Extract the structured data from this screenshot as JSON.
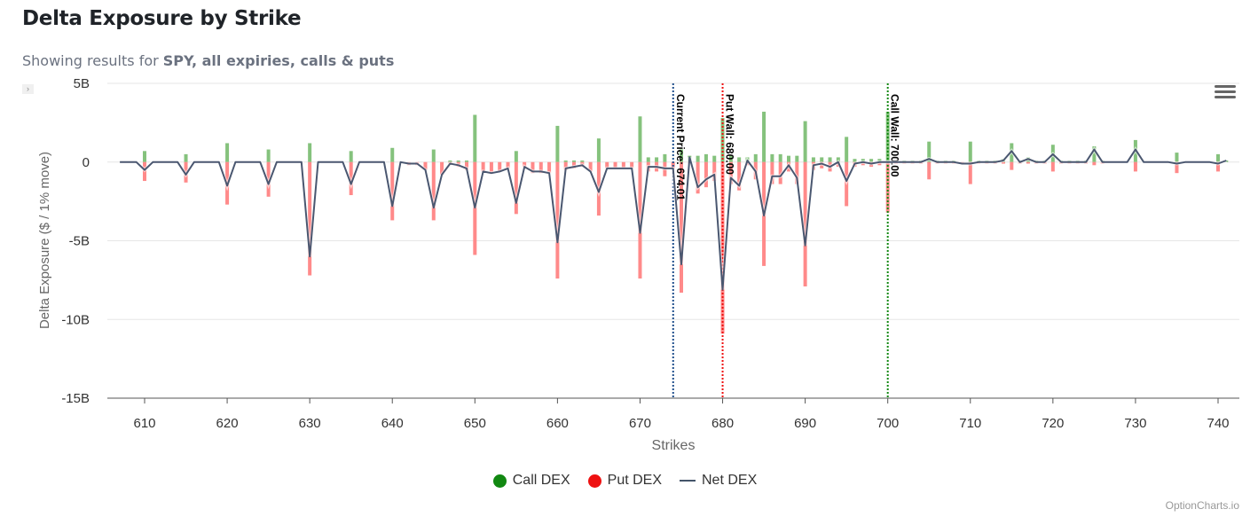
{
  "header": {
    "title": "Delta Exposure by Strike",
    "subtitle_prefix": "Showing results for ",
    "subtitle_bold": "SPY, all expiries, calls & puts"
  },
  "expander_label": "›",
  "legend": [
    {
      "name": "Call DEX",
      "color": "#118811"
    },
    {
      "name": "Put DEX",
      "color": "#ee1111"
    },
    {
      "name": "Net DEX",
      "color": "#44546a"
    }
  ],
  "credit": "OptionCharts.io",
  "chart_data": {
    "type": "bar",
    "title": "Delta Exposure by Strike",
    "xlabel": "Strikes",
    "ylabel": "Delta Exposure ($ / 1% move)",
    "ylim": [
      -15,
      5
    ],
    "yunit": "B",
    "yticks": [
      "5B",
      "0",
      "-5B",
      "-10B",
      "-15B"
    ],
    "xticks": [
      610,
      620,
      630,
      640,
      650,
      660,
      670,
      680,
      690,
      700,
      710,
      720,
      730,
      740
    ],
    "xlim": [
      606.5,
      742
    ],
    "grid": true,
    "legend_position": "bottom",
    "annotations": [
      {
        "label": "Current Price: 674.01",
        "x": 674.01,
        "color": "#1f4e8c"
      },
      {
        "label": "Put Wall: 680.00",
        "x": 680,
        "color": "#ee1111"
      },
      {
        "label": "Call Wall: 700.00",
        "x": 700,
        "color": "#118811"
      }
    ],
    "strikes": [
      607,
      608,
      609,
      610,
      611,
      612,
      613,
      614,
      615,
      616,
      617,
      618,
      619,
      620,
      621,
      622,
      623,
      624,
      625,
      626,
      627,
      628,
      629,
      630,
      631,
      632,
      633,
      634,
      635,
      636,
      637,
      638,
      639,
      640,
      641,
      642,
      643,
      644,
      645,
      646,
      647,
      648,
      649,
      650,
      651,
      652,
      653,
      654,
      655,
      656,
      657,
      658,
      659,
      660,
      661,
      662,
      663,
      664,
      665,
      666,
      667,
      668,
      669,
      670,
      671,
      672,
      673,
      674,
      675,
      676,
      677,
      678,
      679,
      680,
      681,
      682,
      683,
      684,
      685,
      686,
      687,
      688,
      689,
      690,
      691,
      692,
      693,
      694,
      695,
      696,
      697,
      698,
      699,
      700,
      701,
      702,
      703,
      704,
      705,
      706,
      707,
      708,
      709,
      710,
      711,
      712,
      713,
      714,
      715,
      716,
      717,
      718,
      719,
      720,
      721,
      722,
      723,
      724,
      725,
      726,
      727,
      728,
      729,
      730,
      731,
      732,
      733,
      734,
      735,
      736,
      737,
      738,
      739,
      740,
      741
    ],
    "series": [
      {
        "name": "Call DEX",
        "values": [
          0,
          0,
          0,
          0.7,
          0,
          0,
          0,
          0,
          0.5,
          0,
          0,
          0,
          0,
          1.2,
          0,
          0,
          0,
          0,
          0.8,
          0,
          0,
          0,
          0,
          1.2,
          0,
          0,
          0,
          0,
          0.7,
          0,
          0,
          0,
          0,
          0.9,
          0,
          0,
          0,
          0,
          0.8,
          0,
          0.1,
          0.1,
          0.1,
          3.0,
          0,
          0,
          0,
          0,
          0.7,
          0,
          0,
          0,
          0,
          2.3,
          0.1,
          0.1,
          0.1,
          0,
          1.5,
          0,
          0,
          0,
          0,
          2.9,
          0.3,
          0.3,
          0.5,
          0,
          0.8,
          0.4,
          0.4,
          0.5,
          0.4,
          2.8,
          0.4,
          0.3,
          0.3,
          0.5,
          3.2,
          0.5,
          0.5,
          0.4,
          0.4,
          2.6,
          0.3,
          0.3,
          0.3,
          0.3,
          1.6,
          0.2,
          0.2,
          0.2,
          0.2,
          3.2,
          0.1,
          0.1,
          0.1,
          0.1,
          1.3,
          0.1,
          0.1,
          0.1,
          0,
          1.3,
          0.1,
          0.1,
          0.1,
          0.2,
          1.2,
          0.1,
          0.3,
          0.1,
          0.1,
          1.1,
          0.1,
          0.1,
          0.1,
          0.1,
          1.0,
          0.1,
          0,
          0,
          0,
          1.4,
          0,
          0,
          0,
          0,
          0.6,
          0,
          0,
          0,
          0,
          0.5,
          0.1
        ]
      },
      {
        "name": "Put DEX",
        "values": [
          0,
          0,
          0,
          -1.2,
          0,
          0,
          0,
          0,
          -1.3,
          0,
          0,
          0,
          0,
          -2.7,
          0,
          0,
          0,
          0,
          -2.2,
          0,
          0,
          0,
          0,
          -7.2,
          0,
          0,
          0,
          0,
          -2.1,
          0,
          0,
          0,
          0,
          -3.7,
          0,
          -0.2,
          -0.2,
          -0.5,
          -3.7,
          -0.8,
          -0.1,
          -0.3,
          -0.5,
          -5.9,
          -0.6,
          -0.7,
          -0.6,
          -0.4,
          -3.3,
          -0.3,
          -0.7,
          -0.7,
          -0.7,
          -7.4,
          -0.5,
          -0.4,
          -0.3,
          -0.6,
          -3.4,
          -0.4,
          -0.4,
          -0.4,
          -0.4,
          -7.4,
          -0.6,
          -0.6,
          -0.9,
          -0.4,
          -8.3,
          -0.1,
          -2.0,
          -1.6,
          -1.2,
          -10.9,
          -1.4,
          -1.8,
          -0.2,
          -1.1,
          -6.6,
          -1.4,
          -1.4,
          -0.6,
          -1.4,
          -7.9,
          -0.5,
          -0.4,
          -0.6,
          -0.3,
          -2.8,
          -0.3,
          -0.2,
          -0.3,
          -0.2,
          -3.2,
          -0.1,
          -0.1,
          -0.1,
          -0.1,
          -1.1,
          -0.1,
          -0.1,
          -0.1,
          -0.1,
          -1.4,
          -0.1,
          -0.1,
          -0.1,
          -0.1,
          -0.5,
          -0.1,
          -0.1,
          -0.1,
          -0.1,
          -0.6,
          -0.1,
          -0.1,
          -0.1,
          -0.1,
          -0.2,
          -0.1,
          0,
          0,
          0,
          -0.6,
          0,
          0,
          0,
          0,
          -0.7,
          0,
          0,
          0,
          0,
          -0.6,
          0
        ]
      },
      {
        "name": "Net DEX",
        "values": [
          0,
          0,
          0,
          -0.5,
          0,
          0,
          0,
          0,
          -0.8,
          0,
          0,
          0,
          0,
          -1.5,
          0,
          0,
          0,
          0,
          -1.4,
          0,
          0,
          0,
          0,
          -6.0,
          0,
          0,
          0,
          0,
          -1.4,
          0,
          0,
          0,
          0,
          -2.8,
          0,
          -0.1,
          -0.1,
          -0.5,
          -2.9,
          -0.8,
          -0.1,
          -0.2,
          -0.4,
          -2.9,
          -0.6,
          -0.7,
          -0.6,
          -0.4,
          -2.6,
          -0.3,
          -0.6,
          -0.6,
          -0.7,
          -5.1,
          -0.4,
          -0.3,
          -0.2,
          -0.6,
          -1.9,
          -0.4,
          -0.4,
          -0.4,
          -0.4,
          -4.5,
          -0.3,
          -0.3,
          -0.4,
          -0.4,
          -6.5,
          0.3,
          -1.6,
          -1.1,
          -0.8,
          -8.1,
          -1.0,
          -1.5,
          0.1,
          -0.6,
          -3.4,
          -0.9,
          -0.9,
          -0.2,
          -1.0,
          -5.3,
          -0.2,
          -0.1,
          -0.3,
          0,
          -1.2,
          -0.1,
          0,
          -0.1,
          0,
          0,
          0,
          0,
          0,
          0,
          0.2,
          0,
          0,
          0,
          -0.1,
          -0.1,
          0,
          0,
          0,
          0.1,
          0.7,
          0,
          0.2,
          0,
          0,
          0.5,
          0,
          0,
          0,
          0,
          0.8,
          0,
          0,
          0,
          0,
          0.8,
          0,
          0,
          0,
          0,
          -0.1,
          0,
          0,
          0,
          0,
          -0.1,
          0.1
        ]
      }
    ]
  }
}
